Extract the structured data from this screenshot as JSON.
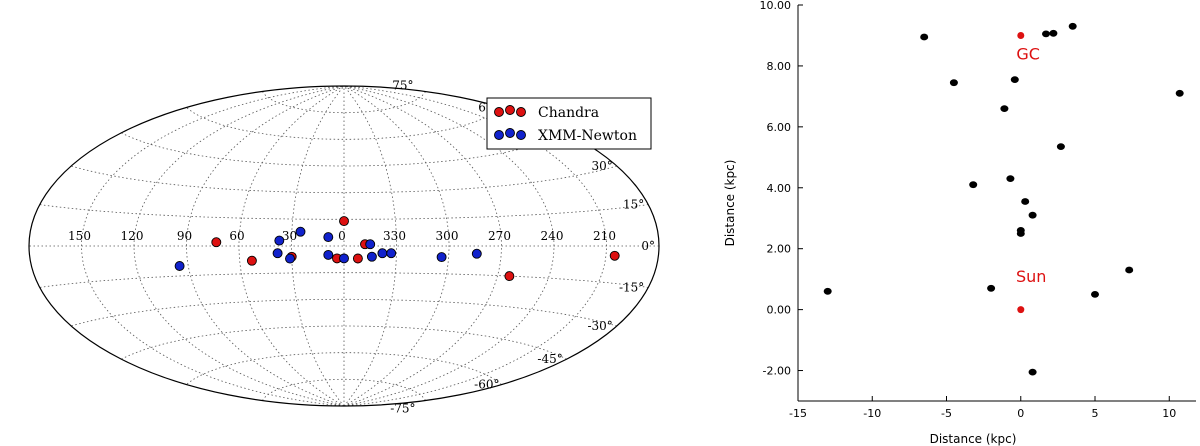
{
  "chart_data": [
    {
      "type": "scatter",
      "projection": "aitoff-galactic",
      "lon_ticks": [
        "150",
        "120",
        "90",
        "60",
        "30",
        "0",
        "330",
        "300",
        "270",
        "240",
        "210"
      ],
      "lat_ticks": [
        "75°",
        "60°",
        "45°",
        "30°",
        "15°",
        "0°",
        "-15°",
        "-30°",
        "-45°",
        "-60°",
        "-75°"
      ],
      "legend_position": "top-right",
      "series": [
        {
          "name": "Chandra",
          "color": "#dd1111",
          "points": [
            {
              "l": 0,
              "b": 14
            },
            {
              "l": 73,
              "b": 2
            },
            {
              "l": 53,
              "b": -8
            },
            {
              "l": 30,
              "b": -6
            },
            {
              "l": 4,
              "b": -7
            },
            {
              "l": 352,
              "b": -7
            },
            {
              "l": 348,
              "b": 1
            },
            {
              "l": 263,
              "b": -15
            },
            {
              "l": 205,
              "b": -4
            }
          ]
        },
        {
          "name": "XMM-Newton",
          "color": "#1122cc",
          "points": [
            {
              "l": 25,
              "b": 8
            },
            {
              "l": 37,
              "b": 3
            },
            {
              "l": 9,
              "b": 5
            },
            {
              "l": 345,
              "b": 1
            },
            {
              "l": 95,
              "b": -10
            },
            {
              "l": 38,
              "b": -4
            },
            {
              "l": 31,
              "b": -7
            },
            {
              "l": 9,
              "b": -5
            },
            {
              "l": 0,
              "b": -7
            },
            {
              "l": 344,
              "b": -6
            },
            {
              "l": 338,
              "b": -4
            },
            {
              "l": 333,
              "b": -4
            },
            {
              "l": 304,
              "b": -6
            },
            {
              "l": 284,
              "b": -4
            }
          ]
        }
      ]
    },
    {
      "type": "scatter",
      "xlabel": "Distance (kpc)",
      "ylabel": "Distance (kpc)",
      "xlim": [
        -15,
        11.8
      ],
      "ylim": [
        -3,
        10
      ],
      "x_ticks": [
        "-15",
        "-10",
        "-5",
        "0",
        "5",
        "10"
      ],
      "y_ticks": [
        "10.00",
        "8.00",
        "6.00",
        "4.00",
        "2.00",
        "0.00",
        "-2.00"
      ],
      "grid": false,
      "annotations": [
        {
          "text": "GC",
          "x": 0.5,
          "y": 8.4,
          "color": "#dd1111"
        },
        {
          "text": "Sun",
          "x": 0.7,
          "y": 1.1,
          "color": "#dd1111"
        }
      ],
      "markers": [
        {
          "name": "GC",
          "x": 0,
          "y": 9.0,
          "color": "#dd1111"
        },
        {
          "name": "Sun",
          "x": 0,
          "y": 0,
          "color": "#dd1111"
        }
      ],
      "series": [
        {
          "color": "#000000",
          "points": [
            {
              "x": -6.5,
              "y": 8.95
            },
            {
              "x": 1.7,
              "y": 9.05
            },
            {
              "x": 2.2,
              "y": 9.07
            },
            {
              "x": 3.5,
              "y": 9.3
            },
            {
              "x": -4.5,
              "y": 7.45
            },
            {
              "x": -0.4,
              "y": 7.55
            },
            {
              "x": -1.1,
              "y": 6.6
            },
            {
              "x": 10.7,
              "y": 7.1
            },
            {
              "x": 2.7,
              "y": 5.35
            },
            {
              "x": -3.2,
              "y": 4.1
            },
            {
              "x": -0.7,
              "y": 4.3
            },
            {
              "x": 0.3,
              "y": 3.55
            },
            {
              "x": 0.8,
              "y": 3.1
            },
            {
              "x": 0.0,
              "y": 2.6
            },
            {
              "x": 0.0,
              "y": 2.5
            },
            {
              "x": 7.3,
              "y": 1.3
            },
            {
              "x": -13.0,
              "y": 0.6
            },
            {
              "x": -2.0,
              "y": 0.7
            },
            {
              "x": 5.0,
              "y": 0.5
            },
            {
              "x": 0.8,
              "y": -2.05
            }
          ]
        }
      ]
    }
  ]
}
